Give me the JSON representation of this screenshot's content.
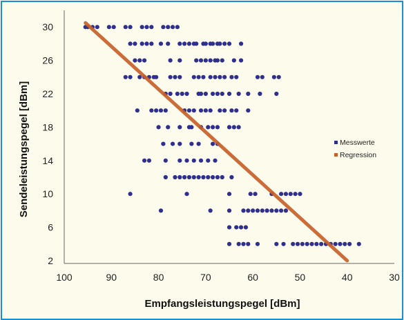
{
  "colors": {
    "frame_border": "#1a8fcf",
    "background": "#fdfbec",
    "points": "#2e2f8f",
    "regression": "#c8602a"
  },
  "chart_data": {
    "type": "scatter",
    "xlabel": "Empfangsleistungspegel [dBm]",
    "ylabel": "Sendeleistungspegel [dBm]",
    "xlim": [
      100,
      30
    ],
    "ylim": [
      2,
      32
    ],
    "x_reversed": true,
    "x_ticks": [
      100,
      90,
      80,
      70,
      60,
      50,
      40,
      30
    ],
    "y_ticks": [
      2,
      6,
      10,
      14,
      18,
      22,
      26,
      30
    ],
    "grid": false,
    "legend_position": "right",
    "series": [
      {
        "name": "Messwerte",
        "marker": "dot",
        "points": [
          [
            95.5,
            30
          ],
          [
            95,
            30
          ],
          [
            94,
            30
          ],
          [
            93,
            30
          ],
          [
            90.5,
            30
          ],
          [
            89.5,
            30
          ],
          [
            87,
            30
          ],
          [
            86,
            30
          ],
          [
            83.5,
            30
          ],
          [
            82.5,
            30
          ],
          [
            81.5,
            30
          ],
          [
            79,
            30
          ],
          [
            78,
            30
          ],
          [
            77,
            30
          ],
          [
            76,
            30
          ],
          [
            86,
            28
          ],
          [
            85,
            28
          ],
          [
            83.5,
            28
          ],
          [
            82.5,
            28
          ],
          [
            81.5,
            28
          ],
          [
            79.5,
            28
          ],
          [
            78,
            28
          ],
          [
            75.5,
            28
          ],
          [
            74.5,
            28
          ],
          [
            73.5,
            28
          ],
          [
            72.5,
            28
          ],
          [
            72,
            28
          ],
          [
            70.5,
            28
          ],
          [
            70,
            28
          ],
          [
            69,
            28
          ],
          [
            68.5,
            28
          ],
          [
            67.5,
            28
          ],
          [
            67,
            28
          ],
          [
            66,
            28
          ],
          [
            65,
            28
          ],
          [
            62.5,
            28
          ],
          [
            85,
            26
          ],
          [
            84,
            26
          ],
          [
            83,
            26
          ],
          [
            77.5,
            26
          ],
          [
            75.5,
            26
          ],
          [
            72,
            26
          ],
          [
            71,
            26
          ],
          [
            70,
            26
          ],
          [
            69,
            26
          ],
          [
            68,
            26
          ],
          [
            67.5,
            26
          ],
          [
            66.5,
            26
          ],
          [
            64,
            26
          ],
          [
            62.5,
            26
          ],
          [
            87,
            24
          ],
          [
            86,
            24
          ],
          [
            84,
            24
          ],
          [
            83,
            24
          ],
          [
            82,
            24
          ],
          [
            81,
            24
          ],
          [
            80.5,
            24
          ],
          [
            77.5,
            24
          ],
          [
            76.5,
            24
          ],
          [
            75.5,
            24
          ],
          [
            72.5,
            24
          ],
          [
            71.5,
            24
          ],
          [
            70.5,
            24
          ],
          [
            69,
            24
          ],
          [
            68,
            24
          ],
          [
            67,
            24
          ],
          [
            66,
            24
          ],
          [
            64.5,
            24
          ],
          [
            63.5,
            24
          ],
          [
            59,
            24
          ],
          [
            58,
            24
          ],
          [
            55.5,
            24
          ],
          [
            54.5,
            24
          ],
          [
            78.5,
            22
          ],
          [
            77.5,
            22
          ],
          [
            76,
            22
          ],
          [
            75,
            22
          ],
          [
            74,
            22
          ],
          [
            71.5,
            22
          ],
          [
            71,
            22
          ],
          [
            70,
            22
          ],
          [
            68.5,
            22
          ],
          [
            67.5,
            22
          ],
          [
            66.5,
            22
          ],
          [
            65,
            22
          ],
          [
            63,
            22
          ],
          [
            61,
            22
          ],
          [
            58.5,
            22
          ],
          [
            55,
            22
          ],
          [
            84.5,
            20
          ],
          [
            81.5,
            20
          ],
          [
            80.5,
            20
          ],
          [
            79.5,
            20
          ],
          [
            78.5,
            20
          ],
          [
            74.5,
            20
          ],
          [
            73.5,
            20
          ],
          [
            72.5,
            20
          ],
          [
            71,
            20
          ],
          [
            70,
            20
          ],
          [
            69,
            20
          ],
          [
            67,
            20
          ],
          [
            66,
            20
          ],
          [
            64.5,
            20
          ],
          [
            63.5,
            20
          ],
          [
            61,
            20
          ],
          [
            80,
            18
          ],
          [
            78,
            18
          ],
          [
            75.5,
            18
          ],
          [
            73.5,
            18
          ],
          [
            73,
            18
          ],
          [
            71,
            18
          ],
          [
            69.5,
            18
          ],
          [
            68.5,
            18
          ],
          [
            67.5,
            18
          ],
          [
            65,
            18
          ],
          [
            64,
            18
          ],
          [
            63,
            18
          ],
          [
            79,
            16
          ],
          [
            77,
            16
          ],
          [
            75.5,
            16
          ],
          [
            73,
            16
          ],
          [
            71.5,
            16
          ],
          [
            68.5,
            16
          ],
          [
            67.5,
            16
          ],
          [
            83,
            14
          ],
          [
            82,
            14
          ],
          [
            78.5,
            14
          ],
          [
            75.5,
            14
          ],
          [
            74,
            14
          ],
          [
            72.5,
            14
          ],
          [
            71,
            14
          ],
          [
            69.5,
            14
          ],
          [
            68,
            14
          ],
          [
            78.5,
            12
          ],
          [
            76.5,
            12
          ],
          [
            75.5,
            12
          ],
          [
            74.5,
            12
          ],
          [
            73.5,
            12
          ],
          [
            72.5,
            12
          ],
          [
            71.5,
            12
          ],
          [
            70.5,
            12
          ],
          [
            69.5,
            12
          ],
          [
            68.5,
            12
          ],
          [
            67.5,
            12
          ],
          [
            66.5,
            12
          ],
          [
            64.5,
            12
          ],
          [
            86,
            10
          ],
          [
            74,
            10
          ],
          [
            65,
            10
          ],
          [
            60.5,
            10
          ],
          [
            59.5,
            10
          ],
          [
            56,
            10
          ],
          [
            54,
            10
          ],
          [
            53,
            10
          ],
          [
            52,
            10
          ],
          [
            51,
            10
          ],
          [
            50,
            10
          ],
          [
            79.5,
            8
          ],
          [
            69,
            8
          ],
          [
            65,
            8
          ],
          [
            62,
            8
          ],
          [
            61,
            8
          ],
          [
            60,
            8
          ],
          [
            59,
            8
          ],
          [
            58,
            8
          ],
          [
            57,
            8
          ],
          [
            56,
            8
          ],
          [
            55,
            8
          ],
          [
            54,
            8
          ],
          [
            53,
            8
          ],
          [
            65,
            6
          ],
          [
            63.5,
            6
          ],
          [
            62.5,
            6
          ],
          [
            61.5,
            6
          ],
          [
            65,
            4
          ],
          [
            63,
            4
          ],
          [
            62,
            4
          ],
          [
            61,
            4
          ],
          [
            59,
            4
          ],
          [
            55,
            4
          ],
          [
            53.5,
            4
          ],
          [
            51.5,
            4
          ],
          [
            50.5,
            4
          ],
          [
            49.5,
            4
          ],
          [
            48.5,
            4
          ],
          [
            47.5,
            4
          ],
          [
            46.5,
            4
          ],
          [
            45.5,
            4
          ],
          [
            44.5,
            4
          ],
          [
            43.5,
            4
          ],
          [
            42.5,
            4
          ],
          [
            41.5,
            4
          ],
          [
            40.5,
            4
          ],
          [
            39.5,
            4
          ],
          [
            37.5,
            4
          ]
        ]
      },
      {
        "name": "Regression",
        "type": "line",
        "points": [
          [
            95.5,
            30.5
          ],
          [
            40,
            2
          ]
        ]
      }
    ]
  }
}
